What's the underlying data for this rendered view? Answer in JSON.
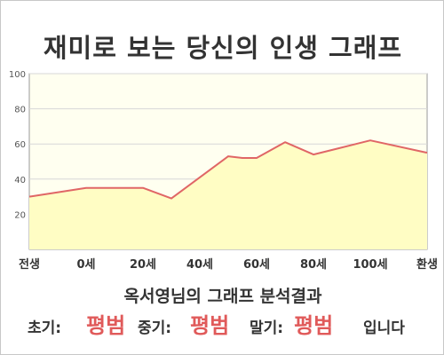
{
  "title": "재미로 보는 당신의 인생 그래프",
  "subtitle": "옥서영님의 그래프 분석결과",
  "results": {
    "early_label": "초기:",
    "early_value": "평범",
    "mid_label": "중기:",
    "mid_value": "평범",
    "late_label": "말기:",
    "late_value": "평범",
    "ending": "입니다"
  },
  "colors": {
    "line": "#e06666",
    "fill": "#fffdc4",
    "plot_bg": "#fffff0",
    "grid": "#d7d7d7",
    "highlight_text": "#e05a5a"
  },
  "chart_data": {
    "type": "area",
    "title": "",
    "xlabel": "",
    "ylabel": "",
    "ylim": [
      0,
      100
    ],
    "yticks": [
      20,
      40,
      60,
      80,
      100
    ],
    "grid": true,
    "x_ticks": [
      "전생",
      "0세",
      "20세",
      "40세",
      "60세",
      "80세",
      "100세",
      "환생"
    ],
    "series": [
      {
        "x": [
          -20,
          0,
          10,
          20,
          30,
          50,
          55,
          60,
          70,
          80,
          95,
          100,
          120
        ],
        "values": [
          30,
          35,
          35,
          35,
          29,
          53,
          52,
          52,
          61,
          54,
          60,
          62,
          55
        ]
      }
    ],
    "x_domain": [
      -20,
      120
    ],
    "x_tick_positions": [
      -20,
      0,
      20,
      40,
      60,
      80,
      100,
      120
    ]
  }
}
